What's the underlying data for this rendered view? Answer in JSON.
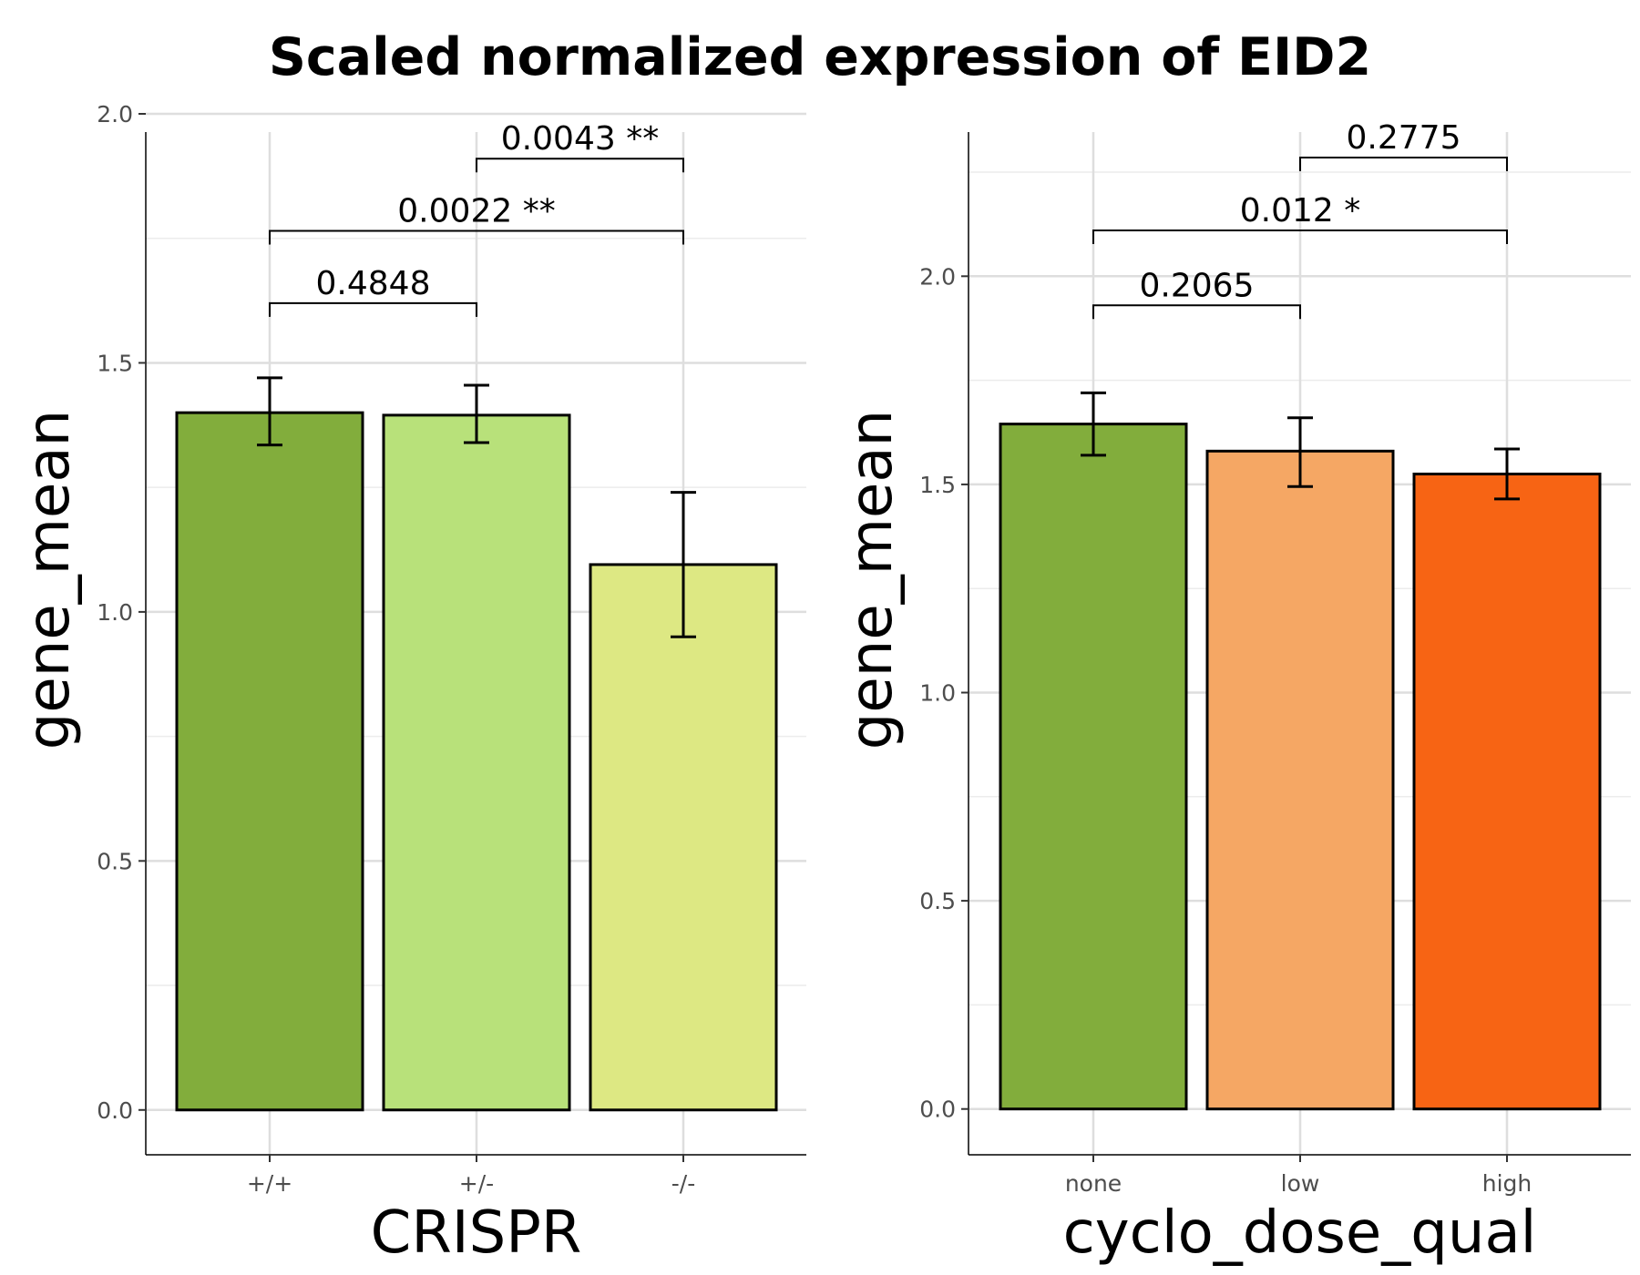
{
  "title": "Scaled normalized expression of EID2",
  "chart_data": [
    {
      "type": "bar",
      "xlabel": "CRISPR",
      "ylabel": "gene_mean",
      "ylim": [
        -0.09,
        2.0
      ],
      "yticks": [
        0.0,
        0.5,
        1.0,
        1.5,
        2.0
      ],
      "ytick_labels": [
        "0.0",
        "0.5",
        "1.0",
        "1.5",
        "2.0"
      ],
      "grid": true,
      "categories": [
        "+/+",
        "+/-",
        "-/-"
      ],
      "values": [
        1.4,
        1.395,
        1.095
      ],
      "error_low": [
        1.335,
        1.34,
        0.95
      ],
      "error_high": [
        1.47,
        1.455,
        1.24
      ],
      "colors": [
        "#82ad3c",
        "#b8e17a",
        "#dde883"
      ],
      "comparisons": [
        {
          "from": 0,
          "to": 1,
          "y": 1.62,
          "label": "0.4848"
        },
        {
          "from": 0,
          "to": 2,
          "y": 1.765,
          "label": "0.0022 **"
        },
        {
          "from": 1,
          "to": 2,
          "y": 1.91,
          "label": "0.0043 **"
        }
      ]
    },
    {
      "type": "bar",
      "xlabel": "cyclo_dose_qual",
      "ylabel": "gene_mean",
      "ylim": [
        -0.11,
        2.39
      ],
      "yticks": [
        0.0,
        0.5,
        1.0,
        1.5,
        2.0
      ],
      "ytick_labels": [
        "0.0",
        "0.5",
        "1.0",
        "1.5",
        "2.0"
      ],
      "grid": true,
      "categories": [
        "none",
        "low",
        "high"
      ],
      "values": [
        1.645,
        1.58,
        1.525
      ],
      "error_low": [
        1.57,
        1.495,
        1.465
      ],
      "error_high": [
        1.72,
        1.66,
        1.585
      ],
      "colors": [
        "#82ad3c",
        "#f5a764",
        "#f76414"
      ],
      "comparisons": [
        {
          "from": 0,
          "to": 1,
          "y": 1.93,
          "label": "0.2065"
        },
        {
          "from": 0,
          "to": 2,
          "y": 2.11,
          "label": "0.012 *"
        },
        {
          "from": 1,
          "to": 2,
          "y": 2.285,
          "label": "0.2775"
        }
      ]
    }
  ]
}
